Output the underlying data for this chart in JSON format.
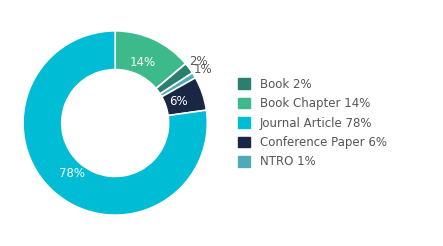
{
  "labels": [
    "Book",
    "Book Chapter",
    "Journal Article",
    "Conference Paper",
    "NTRO"
  ],
  "values": [
    2,
    14,
    78,
    6,
    1
  ],
  "colors": [
    "#2a7f6f",
    "#3dba8c",
    "#00bcd4",
    "#1a2744",
    "#4dabb8"
  ],
  "pct_labels": [
    "2%",
    "14%",
    "78%",
    "6%",
    "1%"
  ],
  "legend_labels": [
    "Book 2%",
    "Book Chapter 14%",
    "Journal Article 78%",
    "Conference Paper 6%",
    "NTRO 1%"
  ],
  "bg_color": "#ffffff",
  "text_color": "#555555",
  "label_fontsize": 8.5,
  "legend_fontsize": 8.5,
  "donut_width": 0.42
}
